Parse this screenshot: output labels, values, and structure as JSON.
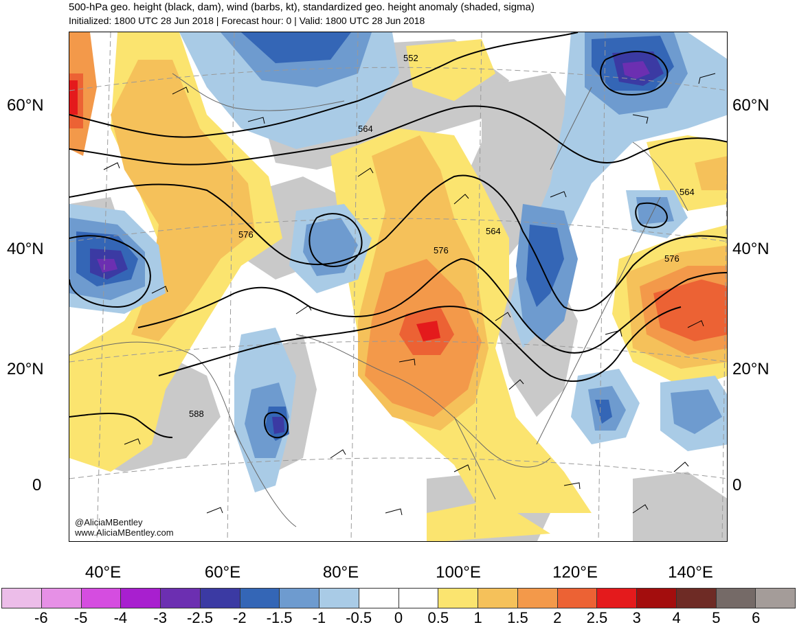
{
  "title": {
    "line1": "500-hPa geo. height (black, dam), wind (barbs, kt), standardized geo. height anomaly (shaded, sigma)",
    "line2": "Initialized: 1800 UTC 28 Jun 2018 | Forecast hour: 0 | Valid: 1800 UTC 28 Jun 2018"
  },
  "axes": {
    "lat_labels": [
      "60°N",
      "40°N",
      "20°N",
      "0"
    ],
    "lon_labels": [
      "40°E",
      "60°E",
      "80°E",
      "100°E",
      "120°E",
      "140°E"
    ]
  },
  "contour_labels": [
    "552",
    "564",
    "564",
    "564",
    "576",
    "576",
    "576",
    "588"
  ],
  "credit": {
    "handle": "@AliciaMBentley",
    "site": "www.AliciaMBentley.com"
  },
  "colorbar": {
    "colors": [
      "#ecbde9",
      "#e690e6",
      "#d54de0",
      "#a81fcf",
      "#6c2fb1",
      "#3b3aa3",
      "#3466b6",
      "#6e9bcf",
      "#a9cbe6",
      "#ffffff",
      "#ffffff",
      "#fbe46f",
      "#f5c15a",
      "#f3994a",
      "#ec6234",
      "#e41a1c",
      "#a30d0d",
      "#6e2b25",
      "#756a67",
      "#a49c99"
    ],
    "tick_labels": [
      "-6",
      "-5",
      "-4",
      "-3",
      "-2.5",
      "-2",
      "-1.5",
      "-1",
      "-0.5",
      "0",
      "0.5",
      "1",
      "1.5",
      "2",
      "2.5",
      "3",
      "4",
      "5",
      "6"
    ]
  }
}
